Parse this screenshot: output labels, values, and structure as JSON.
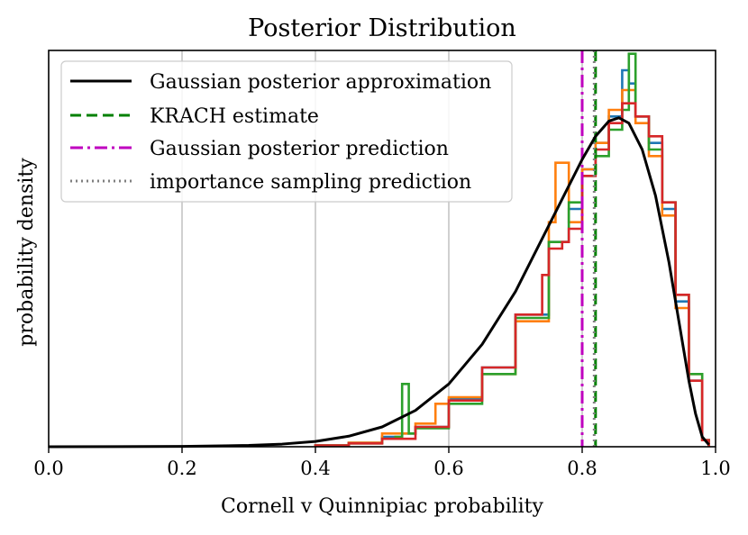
{
  "chart_data": {
    "type": "line",
    "title": "Posterior Distribution",
    "xlabel": "Cornell v Quinnipiac probability",
    "ylabel": "probability density",
    "xlim": [
      0.0,
      1.0
    ],
    "ylim": [
      0,
      6.0
    ],
    "x_ticks": [
      "0.0",
      "0.2",
      "0.4",
      "0.6",
      "0.8",
      "1.0"
    ],
    "x_tick_values": [
      0.0,
      0.2,
      0.4,
      0.6,
      0.8,
      1.0
    ],
    "grid": "x",
    "legend_position": "top-left",
    "legend": [
      {
        "label": "Gaussian posterior approximation",
        "color": "#000000",
        "style": "solid"
      },
      {
        "label": "KRACH estimate",
        "color": "#008000",
        "style": "dashed"
      },
      {
        "label": "Gaussian posterior prediction",
        "color": "#bf00bf",
        "style": "dashdot"
      },
      {
        "label": "importance sampling prediction",
        "color": "#808080",
        "style": "dotted"
      }
    ],
    "gaussian_curve": {
      "x": [
        0.0,
        0.1,
        0.2,
        0.3,
        0.35,
        0.4,
        0.45,
        0.5,
        0.55,
        0.6,
        0.65,
        0.7,
        0.75,
        0.78,
        0.8,
        0.82,
        0.84,
        0.855,
        0.87,
        0.89,
        0.91,
        0.93,
        0.95,
        0.96,
        0.97,
        0.98,
        0.99
      ],
      "y": [
        0.0,
        0.001,
        0.005,
        0.02,
        0.04,
        0.08,
        0.16,
        0.3,
        0.55,
        0.95,
        1.55,
        2.35,
        3.35,
        3.95,
        4.35,
        4.7,
        4.93,
        4.98,
        4.9,
        4.5,
        3.8,
        2.8,
        1.6,
        1.0,
        0.5,
        0.15,
        0.03
      ]
    },
    "krach_estimate": 0.82,
    "gaussian_prediction": 0.8,
    "importance_sampling_prediction": 0.818,
    "histograms": [
      {
        "color": "#1f77b4",
        "x": [
          0.4,
          0.45,
          0.5,
          0.53,
          0.55,
          0.6,
          0.65,
          0.7,
          0.75,
          0.78,
          0.8,
          0.82,
          0.84,
          0.86,
          0.87,
          0.88,
          0.9,
          0.92,
          0.94,
          0.96,
          0.98
        ],
        "y": [
          0.02,
          0.06,
          0.15,
          0.2,
          0.3,
          0.72,
          1.2,
          2.0,
          3.1,
          3.6,
          4.2,
          4.6,
          5.0,
          5.7,
          5.5,
          5.0,
          4.6,
          3.6,
          2.2,
          1.0,
          0.1
        ]
      },
      {
        "color": "#ff7f0e",
        "x": [
          0.4,
          0.45,
          0.5,
          0.55,
          0.58,
          0.6,
          0.65,
          0.7,
          0.75,
          0.76,
          0.78,
          0.8,
          0.82,
          0.84,
          0.86,
          0.88,
          0.9,
          0.92,
          0.94,
          0.96,
          0.98
        ],
        "y": [
          0.02,
          0.06,
          0.2,
          0.35,
          0.65,
          0.75,
          1.1,
          1.9,
          3.4,
          4.3,
          3.4,
          4.2,
          4.6,
          5.1,
          5.4,
          4.9,
          4.4,
          3.5,
          2.1,
          1.1,
          0.1
        ]
      },
      {
        "color": "#2ca02c",
        "x": [
          0.4,
          0.45,
          0.5,
          0.52,
          0.53,
          0.54,
          0.55,
          0.6,
          0.65,
          0.7,
          0.75,
          0.78,
          0.8,
          0.82,
          0.84,
          0.86,
          0.87,
          0.88,
          0.9,
          0.92,
          0.94,
          0.96,
          0.98
        ],
        "y": [
          0.02,
          0.05,
          0.12,
          0.15,
          0.95,
          0.2,
          0.28,
          0.65,
          1.1,
          1.95,
          3.1,
          3.7,
          4.1,
          4.4,
          4.8,
          5.1,
          5.95,
          5.0,
          4.5,
          3.7,
          2.3,
          1.1,
          0.1
        ]
      },
      {
        "color": "#d62728",
        "x": [
          0.4,
          0.45,
          0.5,
          0.55,
          0.6,
          0.65,
          0.7,
          0.74,
          0.75,
          0.77,
          0.78,
          0.8,
          0.82,
          0.84,
          0.86,
          0.88,
          0.9,
          0.92,
          0.94,
          0.96,
          0.98
        ],
        "y": [
          0.02,
          0.05,
          0.12,
          0.3,
          0.7,
          1.2,
          2.0,
          2.6,
          3.0,
          3.1,
          3.3,
          4.1,
          4.5,
          4.9,
          5.2,
          5.0,
          4.7,
          3.7,
          2.3,
          1.0,
          0.1
        ]
      }
    ]
  }
}
